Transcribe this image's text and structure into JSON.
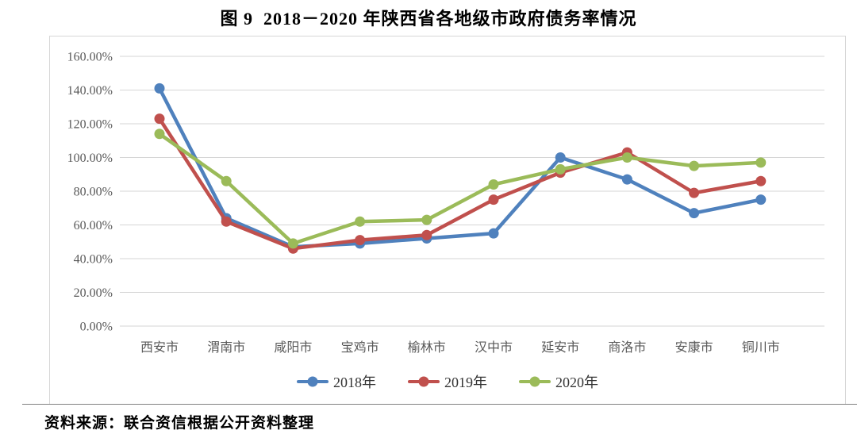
{
  "page": {
    "title": "图 9  2018－2020 年陕西省各地级市政府债务率情况",
    "source_note": "资料来源：联合资信根据公开资料整理"
  },
  "chart_data": {
    "type": "line",
    "title": "图 9  2018－2020 年陕西省各地级市政府债务率情况",
    "categories": [
      "西安市",
      "渭南市",
      "咸阳市",
      "宝鸡市",
      "榆林市",
      "汉中市",
      "延安市",
      "商洛市",
      "安康市",
      "铜川市"
    ],
    "series": [
      {
        "name": "2018年",
        "color": "#4F81BD",
        "values": [
          141,
          64,
          47,
          49,
          52,
          55,
          100,
          87,
          67,
          75
        ]
      },
      {
        "name": "2019年",
        "color": "#C0504D",
        "values": [
          123,
          62,
          46,
          51,
          54,
          75,
          91,
          103,
          79,
          86
        ]
      },
      {
        "name": "2020年",
        "color": "#9BBB59",
        "values": [
          114,
          86,
          49,
          62,
          63,
          84,
          93,
          100,
          95,
          97
        ]
      }
    ],
    "unit": "percent",
    "ylim": [
      0,
      160
    ],
    "ytick_step": 20,
    "ytick_labels": [
      "0.00%",
      "20.00%",
      "40.00%",
      "60.00%",
      "80.00%",
      "100.00%",
      "120.00%",
      "140.00%",
      "160.00%"
    ],
    "grid": true,
    "legend_position": "bottom",
    "gridline_color": "#d6d6d6",
    "axis_label_color": "#595959",
    "marker": "circle"
  }
}
